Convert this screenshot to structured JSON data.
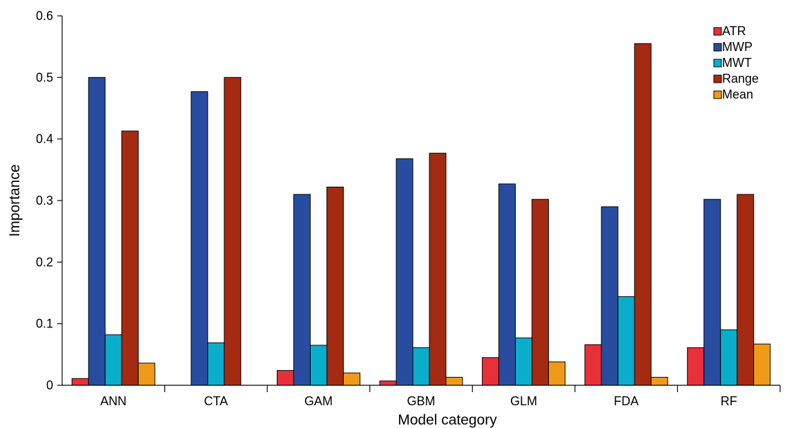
{
  "chart_data": {
    "type": "bar",
    "title": "",
    "xlabel": "Model category",
    "ylabel": "Importance",
    "ylim": [
      0,
      0.6
    ],
    "yticks": [
      "0",
      "0.1",
      "0.2",
      "0.3",
      "0.4",
      "0.5",
      "0.6"
    ],
    "grid": false,
    "legend_position": "top-right",
    "categories": [
      "ANN",
      "CTA",
      "GAM",
      "GBM",
      "GLM",
      "FDA",
      "RF"
    ],
    "series": [
      {
        "name": "ATR",
        "color": "#e8303a",
        "values": [
          0.011,
          0,
          0.024,
          0.007,
          0.045,
          0.066,
          0.061
        ]
      },
      {
        "name": "MWP",
        "color": "#284da0",
        "values": [
          0.5,
          0.477,
          0.31,
          0.368,
          0.327,
          0.29,
          0.302
        ]
      },
      {
        "name": "MWT",
        "color": "#0aaecb",
        "values": [
          0.082,
          0.069,
          0.065,
          0.061,
          0.077,
          0.144,
          0.09
        ]
      },
      {
        "name": "Range",
        "color": "#a52a12",
        "values": [
          0.413,
          0.5,
          0.322,
          0.377,
          0.302,
          0.555,
          0.31
        ]
      },
      {
        "name": "Mean",
        "color": "#f09a1c",
        "values": [
          0.036,
          0,
          0.02,
          0.013,
          0.038,
          0.013,
          0.067
        ]
      }
    ]
  }
}
